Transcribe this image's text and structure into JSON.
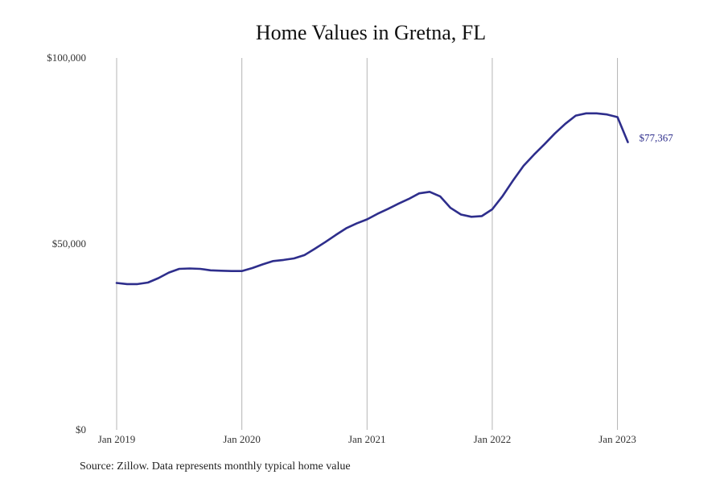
{
  "colors": {
    "line": "#2e2e8c",
    "grid": "#b5b5b5",
    "background": "#ffffff"
  },
  "chart_data": {
    "type": "line",
    "title": "Home Values in Gretna, FL",
    "xlabel": "",
    "ylabel": "",
    "source": "Source: Zillow. Data represents monthly typical home value",
    "ylim": [
      0,
      100000
    ],
    "y_ticks": [
      0,
      50000,
      100000
    ],
    "y_tick_labels": [
      "$0",
      "$50,000",
      "$100,000"
    ],
    "xlim": [
      "2019-01",
      "2023-02"
    ],
    "x_ticks": [
      "2019-01",
      "2020-01",
      "2021-01",
      "2022-01",
      "2023-01"
    ],
    "x_tick_labels": [
      "Jan 2019",
      "Jan 2020",
      "Jan 2021",
      "Jan 2022",
      "Jan 2023"
    ],
    "grid": "vertical",
    "end_label": "$77,367",
    "series": [
      {
        "x": [
          "2019-01",
          "2019-02",
          "2019-03",
          "2019-04",
          "2019-05",
          "2019-06",
          "2019-07",
          "2019-08",
          "2019-09",
          "2019-10",
          "2019-11",
          "2019-12",
          "2020-01",
          "2020-02",
          "2020-03",
          "2020-04",
          "2020-05",
          "2020-06",
          "2020-07",
          "2020-08",
          "2020-09",
          "2020-10",
          "2020-11",
          "2020-12",
          "2021-01",
          "2021-02",
          "2021-03",
          "2021-04",
          "2021-05",
          "2021-06",
          "2021-07",
          "2021-08",
          "2021-09",
          "2021-10",
          "2021-11",
          "2021-12",
          "2022-01",
          "2022-02",
          "2022-03",
          "2022-04",
          "2022-05",
          "2022-06",
          "2022-07",
          "2022-08",
          "2022-09",
          "2022-10",
          "2022-11",
          "2022-12",
          "2023-01",
          "2023-02"
        ],
        "values": [
          39500,
          39200,
          39200,
          39600,
          40800,
          42300,
          43300,
          43400,
          43300,
          42900,
          42800,
          42700,
          42700,
          43500,
          44500,
          45400,
          45700,
          46100,
          47000,
          48700,
          50500,
          52400,
          54200,
          55500,
          56600,
          58100,
          59400,
          60800,
          62100,
          63600,
          64000,
          62800,
          59700,
          57900,
          57300,
          57500,
          59300,
          62900,
          67100,
          71000,
          74000,
          76800,
          79700,
          82300,
          84500,
          85100,
          85100,
          84800,
          84100,
          77367
        ]
      }
    ]
  }
}
